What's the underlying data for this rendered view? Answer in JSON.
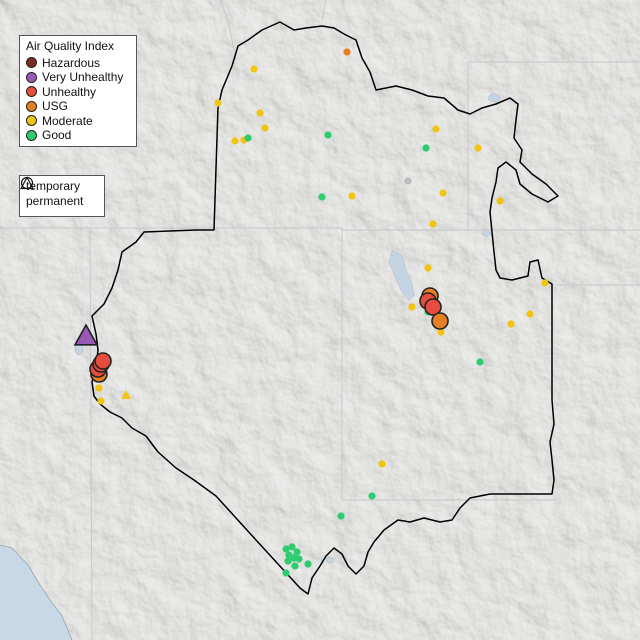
{
  "legend": {
    "title": "Air Quality Index",
    "categories": [
      {
        "label": "Hazardous",
        "color": "#7e2a26"
      },
      {
        "label": "Very Unhealthy",
        "color": "#9b59b6"
      },
      {
        "label": "Unhealthy",
        "color": "#e74c3c"
      },
      {
        "label": "USG",
        "color": "#e67e22"
      },
      {
        "label": "Moderate",
        "color": "#f1c40f"
      },
      {
        "label": "Good",
        "color": "#2ecc71"
      }
    ]
  },
  "monitor_types": [
    {
      "label": "temporary",
      "shape": "circle-icon"
    },
    {
      "label": "permanent",
      "shape": "triangle-icon"
    }
  ],
  "colors": {
    "no_data": "#bbbbbb",
    "boundary": "#000000",
    "water": "#c5d4e2",
    "land": "#ececea"
  }
}
